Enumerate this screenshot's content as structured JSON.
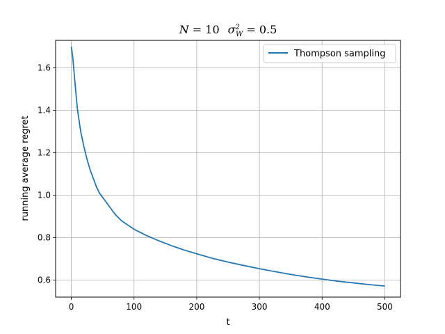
{
  "chart_data": {
    "type": "line",
    "title": {
      "n_symbol": "N",
      "n_eq": " = 10",
      "sigma_symbol": "σ",
      "sigma_sub": "W",
      "sigma_sup": "2",
      "sigma_eq": " = 0.5"
    },
    "xlabel": "t",
    "ylabel": "running average regret",
    "xlim": [
      -25,
      525
    ],
    "ylim": [
      0.52,
      1.73
    ],
    "x_ticks": [
      0,
      100,
      200,
      300,
      400,
      500
    ],
    "x_tick_labels": [
      "0",
      "100",
      "200",
      "300",
      "400",
      "500"
    ],
    "y_ticks": [
      0.6,
      0.8,
      1.0,
      1.2,
      1.4,
      1.6
    ],
    "y_tick_labels": [
      "0.6",
      "0.8",
      "1.0",
      "1.2",
      "1.4",
      "1.6"
    ],
    "grid": true,
    "legend_position": "top-right",
    "series": [
      {
        "name": "Thompson sampling",
        "color": "#1f77b4",
        "x": [
          0,
          2,
          5,
          8,
          10,
          15,
          20,
          25,
          30,
          35,
          40,
          45,
          50,
          60,
          70,
          80,
          90,
          100,
          120,
          140,
          160,
          180,
          200,
          225,
          250,
          275,
          300,
          325,
          350,
          375,
          400,
          425,
          450,
          475,
          500
        ],
        "y": [
          1.7,
          1.66,
          1.56,
          1.46,
          1.4,
          1.3,
          1.23,
          1.17,
          1.12,
          1.08,
          1.04,
          1.01,
          0.99,
          0.95,
          0.91,
          0.88,
          0.86,
          0.84,
          0.81,
          0.785,
          0.762,
          0.742,
          0.724,
          0.703,
          0.685,
          0.669,
          0.654,
          0.64,
          0.627,
          0.615,
          0.605,
          0.595,
          0.587,
          0.579,
          0.572
        ]
      }
    ]
  }
}
